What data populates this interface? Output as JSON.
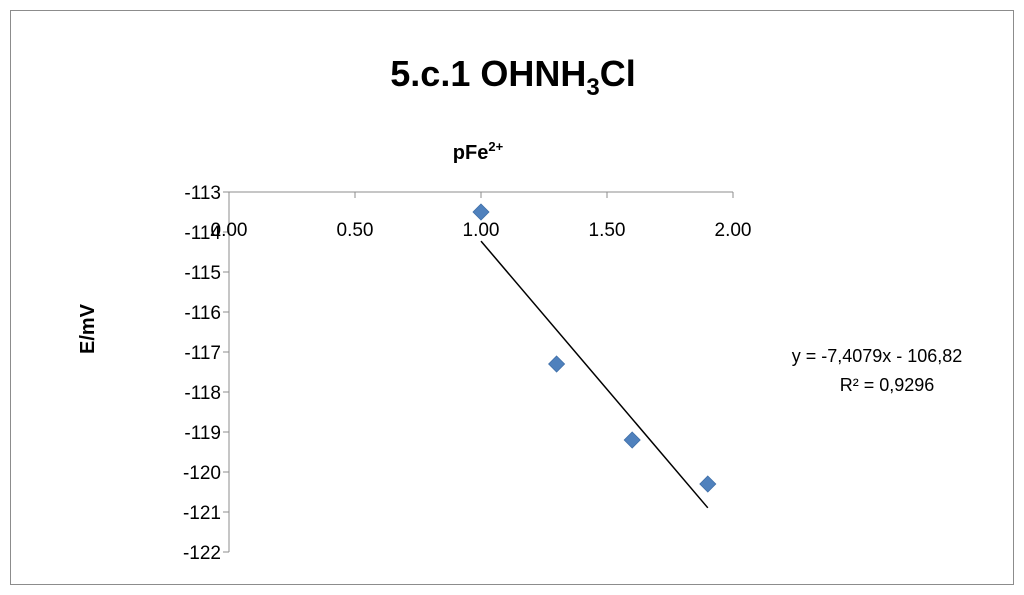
{
  "chart_data": {
    "type": "scatter",
    "title": "5.c.1 OHNH",
    "title_subscript": "3",
    "title_suffix": "Cl",
    "xlabel": "pFe",
    "xlabel_superscript": "2+",
    "ylabel": "E/mV",
    "xlim": [
      0,
      2
    ],
    "ylim": [
      -122,
      -113
    ],
    "x_ticks": [
      "0.00",
      "0.50",
      "1.00",
      "1.50",
      "2.00"
    ],
    "y_ticks": [
      "-113",
      "-114",
      "-115",
      "-116",
      "-117",
      "-118",
      "-119",
      "-120",
      "-121",
      "-122"
    ],
    "x_axis_position": "top",
    "grid": false,
    "marker": "diamond",
    "series": [
      {
        "color": "#4f81bd",
        "points": [
          {
            "x": 1.0,
            "y": -113.5
          },
          {
            "x": 1.3,
            "y": -117.3
          },
          {
            "x": 1.6,
            "y": -119.2
          },
          {
            "x": 1.9,
            "y": -120.3
          }
        ]
      }
    ],
    "trendline": {
      "type": "linear",
      "slope": -7.4079,
      "intercept": -106.82,
      "x_range": [
        1.0,
        1.9
      ],
      "color": "#000000",
      "equation_text": "y = -7,4079x - 106,82",
      "r2_text": "R² = 0,9296"
    }
  }
}
